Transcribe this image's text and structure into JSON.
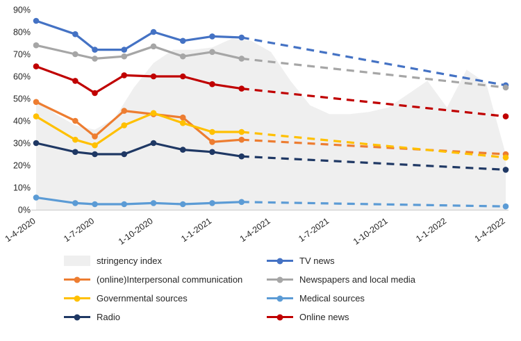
{
  "chart_data": {
    "type": "line",
    "title": "",
    "x_axis": {
      "tick_labels": [
        "1-4-2020",
        "1-7-2020",
        "1-10-2020",
        "1-1-2021",
        "1-4-2021",
        "1-7-2021",
        "1-10-2021",
        "1-1-2022",
        "1-4-2022"
      ],
      "tick_months": [
        0,
        3,
        6,
        9,
        12,
        15,
        18,
        21,
        24
      ],
      "range_months": [
        0,
        24
      ]
    },
    "y_axis": {
      "tick_labels": [
        "0%",
        "10%",
        "20%",
        "30%",
        "40%",
        "50%",
        "60%",
        "70%",
        "80%",
        "90%"
      ],
      "min": 0,
      "max": 90
    },
    "area_series": {
      "name": "stringency index",
      "color": "#efefef",
      "x_months": [
        0,
        1,
        2,
        3,
        4,
        5,
        6,
        7,
        8,
        9,
        10,
        11,
        12,
        13,
        14,
        15,
        16,
        17,
        18,
        19,
        20,
        21,
        22,
        23,
        24
      ],
      "values": [
        50,
        43,
        38,
        36,
        41,
        55,
        66,
        72,
        72,
        73,
        77,
        76,
        71,
        58,
        47,
        43,
        43,
        44,
        46,
        52,
        58,
        46,
        63,
        57,
        25
      ]
    },
    "wave_months": [
      0,
      2,
      3,
      4.5,
      6,
      7.5,
      9,
      10.5
    ],
    "series": [
      {
        "name": "TV news",
        "color": "#4472C4",
        "solid_values": [
          85,
          79,
          72,
          72,
          80,
          76,
          78,
          77.5
        ],
        "dash_end_month": 24,
        "dash_end_value": 56
      },
      {
        "name": "Newspapers and local media",
        "color": "#A6A6A6",
        "solid_values": [
          74,
          70,
          68,
          69,
          73.5,
          69,
          71,
          68
        ],
        "dash_end_month": 24,
        "dash_end_value": 55
      },
      {
        "name": "Online news",
        "color": "#C00000",
        "solid_values": [
          64.5,
          58,
          52.5,
          60.5,
          60,
          60,
          56.5,
          54.5
        ],
        "dash_end_month": 24,
        "dash_end_value": 42
      },
      {
        "name": "(online)Interpersonal communication",
        "color": "#ED7D31",
        "solid_values": [
          48.5,
          40,
          33,
          44.5,
          43,
          41.5,
          30.5,
          31.5
        ],
        "dash_end_month": 24,
        "dash_end_value": 25
      },
      {
        "name": "Governmental sources",
        "color": "#FFC000",
        "solid_values": [
          42,
          31.5,
          29,
          38,
          43.5,
          39,
          35,
          35
        ],
        "dash_end_month": 24,
        "dash_end_value": 23.5
      },
      {
        "name": "Radio",
        "color": "#1F3864",
        "solid_values": [
          30,
          26,
          25,
          25,
          30,
          27,
          26,
          24
        ],
        "dash_end_month": 24,
        "dash_end_value": 18
      },
      {
        "name": "Medical sources",
        "color": "#5B9BD5",
        "solid_values": [
          5.5,
          3,
          2.5,
          2.5,
          3,
          2.5,
          3,
          3.5
        ],
        "dash_end_month": 24,
        "dash_end_value": 1.5
      }
    ],
    "legend": {
      "position": "bottom",
      "items": [
        {
          "label": "stringency index",
          "color": "#efefef",
          "type": "area"
        },
        {
          "label": "TV news",
          "color": "#4472C4",
          "type": "line"
        },
        {
          "label": "(online)Interpersonal communication",
          "color": "#ED7D31",
          "type": "line"
        },
        {
          "label": "Newspapers and local media",
          "color": "#A6A6A6",
          "type": "line"
        },
        {
          "label": "Governmental sources",
          "color": "#FFC000",
          "type": "line"
        },
        {
          "label": "Medical sources",
          "color": "#5B9BD5",
          "type": "line"
        },
        {
          "label": "Radio",
          "color": "#1F3864",
          "type": "line"
        },
        {
          "label": "Online news",
          "color": "#C00000",
          "type": "line"
        }
      ]
    },
    "grid": "off"
  }
}
